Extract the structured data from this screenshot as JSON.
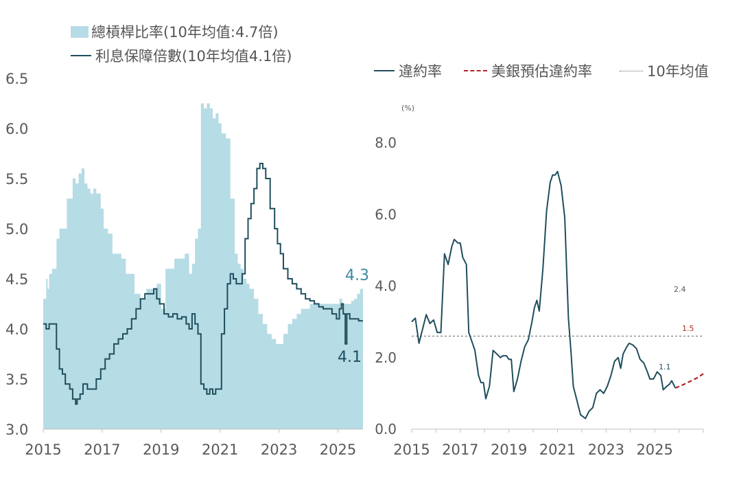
{
  "colors": {
    "leverage_fill": "#b6dce5",
    "coverage_line": "#1e4d5c",
    "default_line": "#1e4d5c",
    "forecast_line": "#b22222",
    "avg_line": "#666666",
    "label_blue": "#3a8aa0",
    "axis_text": "#595959"
  },
  "chart_data": [
    {
      "type": "area",
      "title": "",
      "xlabel": "",
      "ylabel": "",
      "ylim": [
        3.0,
        6.5
      ],
      "xlim": [
        2015,
        2025.85
      ],
      "yticks": [
        "3.0",
        "3.5",
        "4.0",
        "4.5",
        "5.0",
        "5.5",
        "6.0",
        "6.5"
      ],
      "xticks": [
        "2015",
        "2017",
        "2019",
        "2021",
        "2023",
        "2025"
      ],
      "legend": {
        "leverage": "總槓桿比率(10年均值:4.7倍)",
        "coverage": "利息保障倍數(10年均值4.1倍)"
      },
      "annotations": {
        "leverage_last": "4.3",
        "coverage_last": "4.1"
      },
      "series": [
        {
          "name": "總槓桿比率(10年均值:4.7倍)",
          "type": "area",
          "x": [
            2015.0,
            2015.1,
            2015.15,
            2015.2,
            2015.3,
            2015.45,
            2015.55,
            2015.65,
            2015.8,
            2015.9,
            2016.0,
            2016.1,
            2016.2,
            2016.3,
            2016.4,
            2016.5,
            2016.6,
            2016.7,
            2016.8,
            2016.95,
            2017.05,
            2017.2,
            2017.35,
            2017.5,
            2017.65,
            2017.8,
            2017.95,
            2018.1,
            2018.3,
            2018.5,
            2018.7,
            2018.85,
            2019.0,
            2019.15,
            2019.3,
            2019.45,
            2019.6,
            2019.8,
            2019.95,
            2020.05,
            2020.15,
            2020.25,
            2020.35,
            2020.45,
            2020.55,
            2020.65,
            2020.75,
            2020.85,
            2020.95,
            2021.05,
            2021.2,
            2021.35,
            2021.5,
            2021.6,
            2021.7,
            2021.8,
            2021.9,
            2022.0,
            2022.15,
            2022.3,
            2022.45,
            2022.6,
            2022.75,
            2022.9,
            2023.0,
            2023.15,
            2023.3,
            2023.45,
            2023.6,
            2023.75,
            2023.9,
            2024.05,
            2024.2,
            2024.35,
            2024.5,
            2024.65,
            2024.8,
            2024.95,
            2025.05,
            2025.15,
            2025.25,
            2025.35,
            2025.45,
            2025.55,
            2025.65,
            2025.75,
            2025.85
          ],
          "values": [
            4.3,
            4.5,
            4.4,
            4.55,
            4.6,
            4.9,
            5.0,
            5.0,
            5.3,
            5.3,
            5.5,
            5.45,
            5.55,
            5.6,
            5.45,
            5.4,
            5.35,
            5.4,
            5.35,
            5.2,
            5.0,
            4.95,
            4.75,
            4.75,
            4.7,
            4.55,
            4.55,
            4.35,
            4.3,
            4.4,
            4.4,
            4.45,
            4.2,
            4.6,
            4.6,
            4.7,
            4.7,
            4.75,
            4.55,
            4.65,
            4.9,
            5.0,
            6.25,
            6.2,
            6.25,
            6.2,
            6.1,
            6.15,
            6.05,
            5.95,
            5.9,
            5.3,
            4.75,
            4.65,
            4.6,
            4.5,
            4.45,
            4.4,
            4.3,
            4.15,
            4.05,
            3.95,
            3.9,
            3.85,
            3.85,
            3.95,
            4.05,
            4.1,
            4.15,
            4.2,
            4.2,
            4.25,
            4.25,
            4.25,
            4.25,
            4.25,
            4.25,
            4.25,
            4.3,
            4.25,
            4.25,
            4.25,
            4.28,
            4.3,
            4.35,
            4.4,
            4.45
          ]
        },
        {
          "name": "利息保障倍數(10年均值4.1倍)",
          "type": "line",
          "x": [
            2015.0,
            2015.1,
            2015.2,
            2015.3,
            2015.45,
            2015.55,
            2015.65,
            2015.75,
            2015.9,
            2016.0,
            2016.1,
            2016.15,
            2016.25,
            2016.35,
            2016.5,
            2016.65,
            2016.8,
            2016.95,
            2017.1,
            2017.25,
            2017.4,
            2017.55,
            2017.7,
            2017.85,
            2018.0,
            2018.15,
            2018.3,
            2018.45,
            2018.6,
            2018.75,
            2018.85,
            2018.95,
            2019.1,
            2019.25,
            2019.4,
            2019.55,
            2019.7,
            2019.85,
            2019.95,
            2020.05,
            2020.15,
            2020.25,
            2020.35,
            2020.45,
            2020.55,
            2020.65,
            2020.75,
            2020.85,
            2020.95,
            2021.05,
            2021.15,
            2021.25,
            2021.35,
            2021.45,
            2021.55,
            2021.65,
            2021.75,
            2021.85,
            2021.95,
            2022.05,
            2022.15,
            2022.25,
            2022.35,
            2022.45,
            2022.55,
            2022.7,
            2022.85,
            2022.95,
            2023.05,
            2023.15,
            2023.3,
            2023.45,
            2023.6,
            2023.75,
            2023.9,
            2024.05,
            2024.2,
            2024.35,
            2024.5,
            2024.65,
            2024.8,
            2024.95,
            2025.05,
            2025.12,
            2025.18,
            2025.25,
            2025.3,
            2025.4,
            2025.5,
            2025.6,
            2025.7,
            2025.85
          ],
          "values": [
            4.05,
            4.0,
            4.05,
            4.05,
            3.8,
            3.6,
            3.55,
            3.45,
            3.4,
            3.3,
            3.25,
            3.3,
            3.35,
            3.45,
            3.4,
            3.4,
            3.5,
            3.6,
            3.7,
            3.75,
            3.85,
            3.9,
            3.95,
            4.0,
            4.1,
            4.2,
            4.3,
            4.35,
            4.35,
            4.4,
            4.3,
            4.25,
            4.15,
            4.12,
            4.15,
            4.1,
            4.12,
            4.05,
            4.0,
            4.15,
            4.05,
            3.95,
            3.45,
            3.4,
            3.35,
            3.4,
            3.35,
            3.4,
            3.4,
            3.95,
            4.2,
            4.45,
            4.55,
            4.5,
            4.45,
            4.45,
            4.55,
            4.9,
            5.1,
            5.25,
            5.4,
            5.6,
            5.65,
            5.6,
            5.5,
            5.2,
            5.0,
            4.85,
            4.75,
            4.6,
            4.5,
            4.45,
            4.4,
            4.35,
            4.3,
            4.28,
            4.25,
            4.22,
            4.2,
            4.2,
            4.15,
            4.1,
            4.2,
            4.25,
            4.15,
            3.85,
            4.15,
            4.1,
            4.1,
            4.1,
            4.08,
            4.08
          ]
        }
      ]
    },
    {
      "type": "line",
      "title": "",
      "xlabel": "",
      "ylabel": "(%)",
      "ylim": [
        0.0,
        8.0
      ],
      "xlim": [
        2015,
        2027
      ],
      "yticks": [
        "0.0",
        "2.0",
        "4.0",
        "6.0",
        "8.0"
      ],
      "xticks": [
        "2015",
        "2017",
        "2019",
        "2021",
        "2023",
        "2025"
      ],
      "legend": {
        "default_rate": "違約率",
        "forecast": "美銀預估違約率",
        "average": "10年均值"
      },
      "annotations": {
        "a24": "2.4",
        "a15": "1.5",
        "a11": "1.1"
      },
      "average_value": 2.6,
      "series": [
        {
          "name": "違約率",
          "x": [
            2015.0,
            2015.15,
            2015.3,
            2015.45,
            2015.6,
            2015.75,
            2015.9,
            2016.05,
            2016.2,
            2016.35,
            2016.5,
            2016.65,
            2016.75,
            2016.9,
            2017.0,
            2017.1,
            2017.25,
            2017.35,
            2017.45,
            2017.6,
            2017.75,
            2017.85,
            2017.95,
            2018.05,
            2018.2,
            2018.35,
            2018.5,
            2018.65,
            2018.75,
            2018.9,
            2019.0,
            2019.1,
            2019.2,
            2019.35,
            2019.5,
            2019.65,
            2019.8,
            2019.95,
            2020.05,
            2020.15,
            2020.25,
            2020.4,
            2020.55,
            2020.7,
            2020.8,
            2020.9,
            2021.0,
            2021.15,
            2021.3,
            2021.45,
            2021.55,
            2021.65,
            2021.8,
            2021.95,
            2022.05,
            2022.15,
            2022.3,
            2022.45,
            2022.6,
            2022.75,
            2022.9,
            2023.05,
            2023.2,
            2023.35,
            2023.5,
            2023.6,
            2023.7,
            2023.85,
            2023.95,
            2024.1,
            2024.25,
            2024.4,
            2024.55,
            2024.7,
            2024.8,
            2024.95,
            2025.1,
            2025.25,
            2025.35,
            2025.5,
            2025.6,
            2025.7,
            2025.85
          ],
          "values": [
            3.0,
            3.1,
            2.4,
            2.8,
            3.2,
            2.95,
            3.05,
            2.7,
            2.7,
            4.9,
            4.6,
            5.1,
            5.3,
            5.2,
            5.2,
            4.8,
            4.6,
            2.7,
            2.5,
            2.2,
            1.5,
            1.3,
            1.3,
            0.85,
            1.2,
            2.2,
            2.1,
            2.0,
            2.05,
            2.05,
            1.95,
            1.95,
            1.05,
            1.4,
            1.9,
            2.3,
            2.5,
            3.0,
            3.4,
            3.6,
            3.3,
            4.5,
            6.1,
            6.9,
            7.1,
            7.1,
            7.2,
            6.8,
            5.9,
            3.1,
            2.2,
            1.2,
            0.8,
            0.4,
            0.35,
            0.3,
            0.5,
            0.6,
            1.0,
            1.1,
            1.0,
            1.2,
            1.5,
            1.9,
            2.0,
            1.7,
            2.1,
            2.3,
            2.4,
            2.35,
            2.25,
            1.95,
            1.85,
            1.6,
            1.4,
            1.4,
            1.6,
            1.5,
            1.1,
            1.2,
            1.25,
            1.35,
            1.15
          ]
        },
        {
          "name": "美銀預估違約率",
          "x": [
            2025.85,
            2026.2,
            2026.5,
            2026.8,
            2027.0
          ],
          "values": [
            1.15,
            1.25,
            1.35,
            1.45,
            1.55
          ]
        }
      ]
    }
  ]
}
